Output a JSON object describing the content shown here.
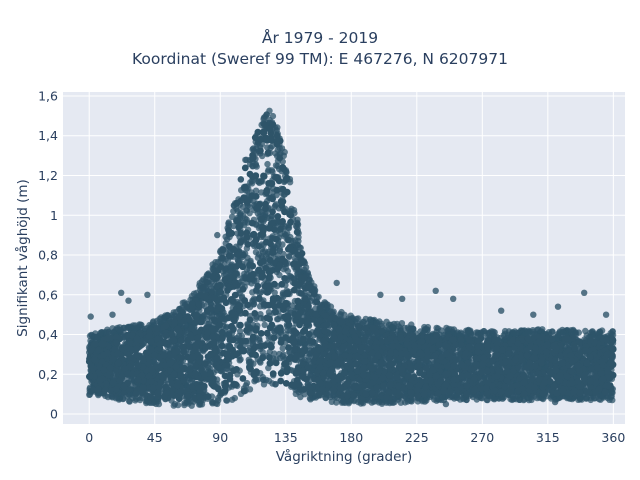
{
  "chart_data": {
    "type": "scatter",
    "title_line1": "År 1979 - 2019",
    "title_line2": "Koordinat (Sweref 99 TM): E 467276, N 6207971",
    "xlabel": "Vågriktning (grader)",
    "ylabel": "Signifikant våghöjd (m)",
    "xlim": [
      -18,
      368
    ],
    "ylim": [
      -0.05,
      1.62
    ],
    "xticks": [
      0,
      45,
      90,
      135,
      180,
      225,
      270,
      315,
      360
    ],
    "xtick_labels": [
      "0",
      "45",
      "90",
      "135",
      "180",
      "225",
      "270",
      "315",
      "360"
    ],
    "yticks": [
      0,
      0.2,
      0.4,
      0.6,
      0.8,
      1,
      1.2,
      1.4,
      1.6
    ],
    "ytick_labels": [
      "0",
      "0,2",
      "0,4",
      "0,6",
      "0,8",
      "1",
      "1,2",
      "1,4",
      "1,6"
    ],
    "grid": true,
    "marker_color": "#2e5469",
    "background_color": "#e5e9f2",
    "envelope": {
      "x": [
        0,
        10,
        20,
        30,
        45,
        60,
        70,
        80,
        90,
        95,
        100,
        105,
        110,
        115,
        120,
        123,
        126,
        130,
        135,
        140,
        145,
        150,
        160,
        170,
        180,
        190,
        200,
        225,
        250,
        270,
        290,
        315,
        340,
        360
      ],
      "y_low": [
        0.09,
        0.09,
        0.07,
        0.06,
        0.05,
        0.04,
        0.04,
        0.04,
        0.05,
        0.06,
        0.07,
        0.08,
        0.1,
        0.12,
        0.14,
        0.15,
        0.15,
        0.14,
        0.12,
        0.1,
        0.08,
        0.07,
        0.06,
        0.05,
        0.05,
        0.05,
        0.05,
        0.06,
        0.07,
        0.07,
        0.07,
        0.07,
        0.07,
        0.07
      ],
      "y_high": [
        0.4,
        0.42,
        0.44,
        0.45,
        0.47,
        0.53,
        0.6,
        0.7,
        0.82,
        0.95,
        1.08,
        1.22,
        1.35,
        1.45,
        1.5,
        1.53,
        1.52,
        1.45,
        1.3,
        1.1,
        0.9,
        0.72,
        0.58,
        0.52,
        0.5,
        0.48,
        0.47,
        0.45,
        0.43,
        0.42,
        0.42,
        0.43,
        0.42,
        0.42
      ]
    },
    "outliers": [
      {
        "x": 1,
        "y": 0.49
      },
      {
        "x": 16,
        "y": 0.5
      },
      {
        "x": 22,
        "y": 0.61
      },
      {
        "x": 27,
        "y": 0.57
      },
      {
        "x": 40,
        "y": 0.6
      },
      {
        "x": 88,
        "y": 0.9
      },
      {
        "x": 104,
        "y": 0.87
      },
      {
        "x": 170,
        "y": 0.66
      },
      {
        "x": 200,
        "y": 0.6
      },
      {
        "x": 215,
        "y": 0.58
      },
      {
        "x": 238,
        "y": 0.62
      },
      {
        "x": 250,
        "y": 0.58
      },
      {
        "x": 283,
        "y": 0.52
      },
      {
        "x": 305,
        "y": 0.5
      },
      {
        "x": 322,
        "y": 0.54
      },
      {
        "x": 340,
        "y": 0.61
      },
      {
        "x": 355,
        "y": 0.5
      },
      {
        "x": 245,
        "y": 0.05
      },
      {
        "x": 320,
        "y": 0.06
      }
    ]
  }
}
